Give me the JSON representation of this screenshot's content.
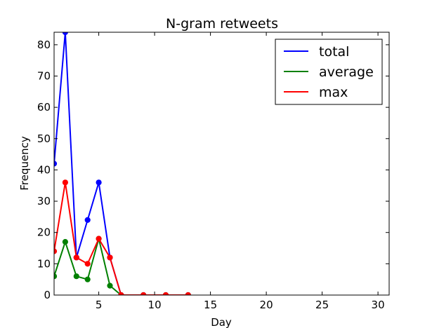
{
  "chart_data": {
    "type": "line",
    "title": "N-gram retweets",
    "xlabel": "Day",
    "ylabel": "Frequency",
    "xlim": [
      1,
      31
    ],
    "ylim": [
      0,
      84
    ],
    "xticks": [
      5,
      10,
      15,
      20,
      25,
      30
    ],
    "yticks": [
      0,
      10,
      20,
      30,
      40,
      50,
      60,
      70,
      80
    ],
    "grid": false,
    "legend_position": "top-right",
    "x": [
      1,
      2,
      3,
      4,
      5,
      6,
      7,
      9,
      11,
      13
    ],
    "series": [
      {
        "name": "total",
        "color": "#0000ff",
        "values": [
          42,
          84,
          12,
          24,
          36,
          12,
          0,
          0,
          0,
          0
        ]
      },
      {
        "name": "average",
        "color": "#008000",
        "values": [
          6,
          17,
          6,
          5,
          18,
          3,
          0,
          0,
          0,
          0
        ]
      },
      {
        "name": "max",
        "color": "#ff0000",
        "values": [
          14,
          36,
          12,
          10,
          18,
          12,
          0,
          0,
          0,
          0
        ]
      }
    ]
  }
}
